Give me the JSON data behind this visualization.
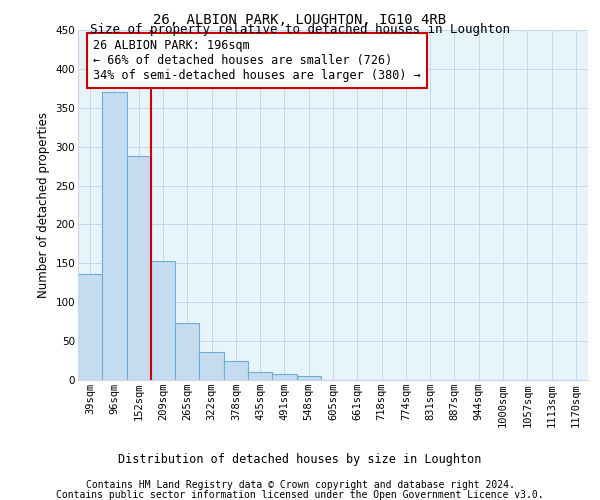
{
  "title": "26, ALBION PARK, LOUGHTON, IG10 4RB",
  "subtitle": "Size of property relative to detached houses in Loughton",
  "xlabel": "Distribution of detached houses by size in Loughton",
  "ylabel": "Number of detached properties",
  "bar_color": "#C5DCF0",
  "bar_edge_color": "#6AAED6",
  "background_color": "#FFFFFF",
  "plot_bg_color": "#E8F4FC",
  "grid_color": "#C8D8E8",
  "categories": [
    "39sqm",
    "96sqm",
    "152sqm",
    "209sqm",
    "265sqm",
    "322sqm",
    "378sqm",
    "435sqm",
    "491sqm",
    "548sqm",
    "605sqm",
    "661sqm",
    "718sqm",
    "774sqm",
    "831sqm",
    "887sqm",
    "944sqm",
    "1000sqm",
    "1057sqm",
    "1113sqm",
    "1170sqm"
  ],
  "values": [
    136,
    370,
    288,
    153,
    73,
    36,
    25,
    10,
    8,
    5,
    0,
    0,
    0,
    0,
    0,
    0,
    0,
    0,
    0,
    0,
    0
  ],
  "ylim": [
    0,
    450
  ],
  "yticks": [
    0,
    50,
    100,
    150,
    200,
    250,
    300,
    350,
    400,
    450
  ],
  "property_label": "26 ALBION PARK: 196sqm",
  "pct_smaller": 66,
  "n_smaller": 726,
  "pct_larger": 34,
  "n_larger": 380,
  "red_line_x": 2.5,
  "footer_line1": "Contains HM Land Registry data © Crown copyright and database right 2024.",
  "footer_line2": "Contains public sector information licensed under the Open Government Licence v3.0.",
  "red_color": "#CC0000",
  "title_fontsize": 10,
  "subtitle_fontsize": 9,
  "axis_label_fontsize": 8.5,
  "tick_fontsize": 7.5,
  "annotation_fontsize": 8.5,
  "footer_fontsize": 7
}
